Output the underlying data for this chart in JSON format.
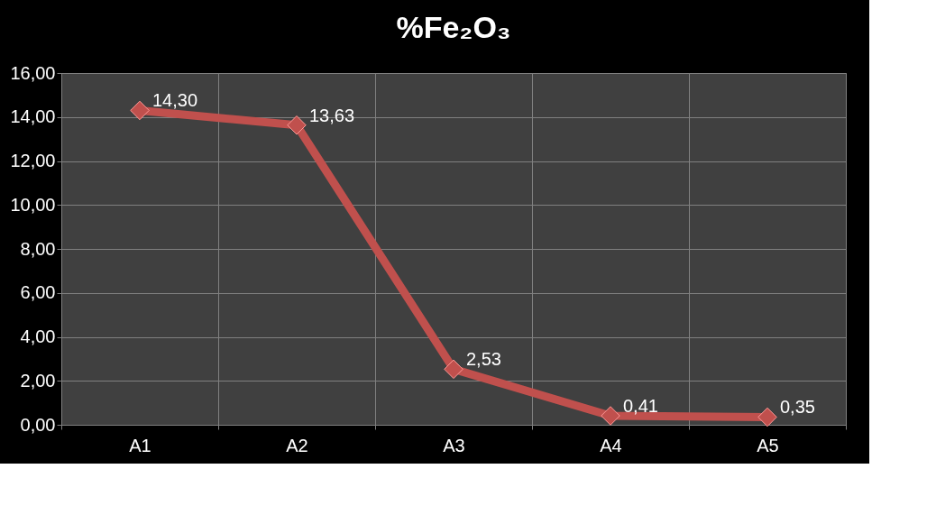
{
  "chart_data": {
    "type": "line",
    "title": "%Fe₂O₃",
    "categories": [
      "A1",
      "A2",
      "A3",
      "A4",
      "A5"
    ],
    "series": [
      {
        "color": "#c0504d",
        "values": [
          14.3,
          13.63,
          2.53,
          0.41,
          0.35
        ],
        "value_labels": [
          "14,30",
          "13,63",
          "2,53",
          "0,41",
          "0,35"
        ]
      }
    ],
    "ylim": [
      0,
      16
    ],
    "yticks": [
      {
        "value": 0,
        "label": "0,00"
      },
      {
        "value": 2,
        "label": "2,00"
      },
      {
        "value": 4,
        "label": "4,00"
      },
      {
        "value": 6,
        "label": "6,00"
      },
      {
        "value": 8,
        "label": "8,00"
      },
      {
        "value": 10,
        "label": "10,00"
      },
      {
        "value": 12,
        "label": "12,00"
      },
      {
        "value": 14,
        "label": "14,00"
      },
      {
        "value": 16,
        "label": "16,00"
      }
    ],
    "grid": true,
    "marker": "diamond",
    "line_style": "solid"
  }
}
